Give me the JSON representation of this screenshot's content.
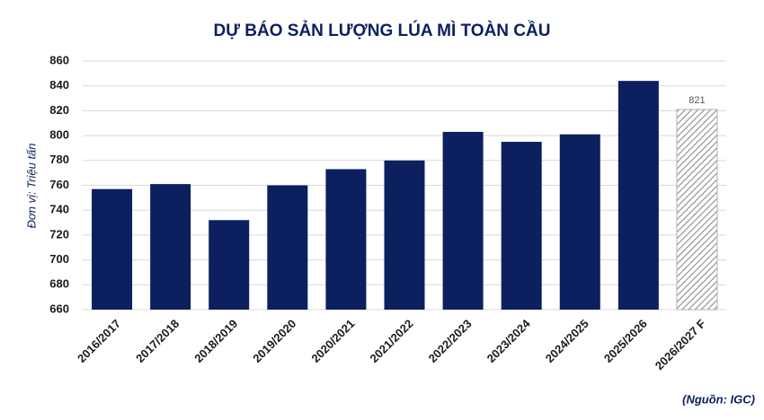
{
  "chart_data": {
    "type": "bar",
    "title": "DỰ BÁO SẢN LƯỢNG LÚA MÌ TOÀN CẦU",
    "y_label": "Đơn vị: Triệu tấn",
    "source": "(Nguồn: IGC)",
    "categories": [
      "2016/2017",
      "2017/2018",
      "2018/2019",
      "2019/2020",
      "2020/2021",
      "2021/2022",
      "2022/2023",
      "2023/2024",
      "2024/2025",
      "2025/2026",
      "2026/2027 F"
    ],
    "values": [
      757,
      761,
      732,
      760,
      773,
      780,
      803,
      795,
      801,
      844,
      821
    ],
    "hatched": [
      false,
      false,
      false,
      false,
      false,
      false,
      false,
      false,
      false,
      false,
      true
    ],
    "color": "#0c1f5e",
    "ylim": [
      660,
      860
    ],
    "yticks": [
      660,
      680,
      700,
      720,
      740,
      760,
      780,
      800,
      820,
      840,
      860
    ],
    "grid": true
  }
}
